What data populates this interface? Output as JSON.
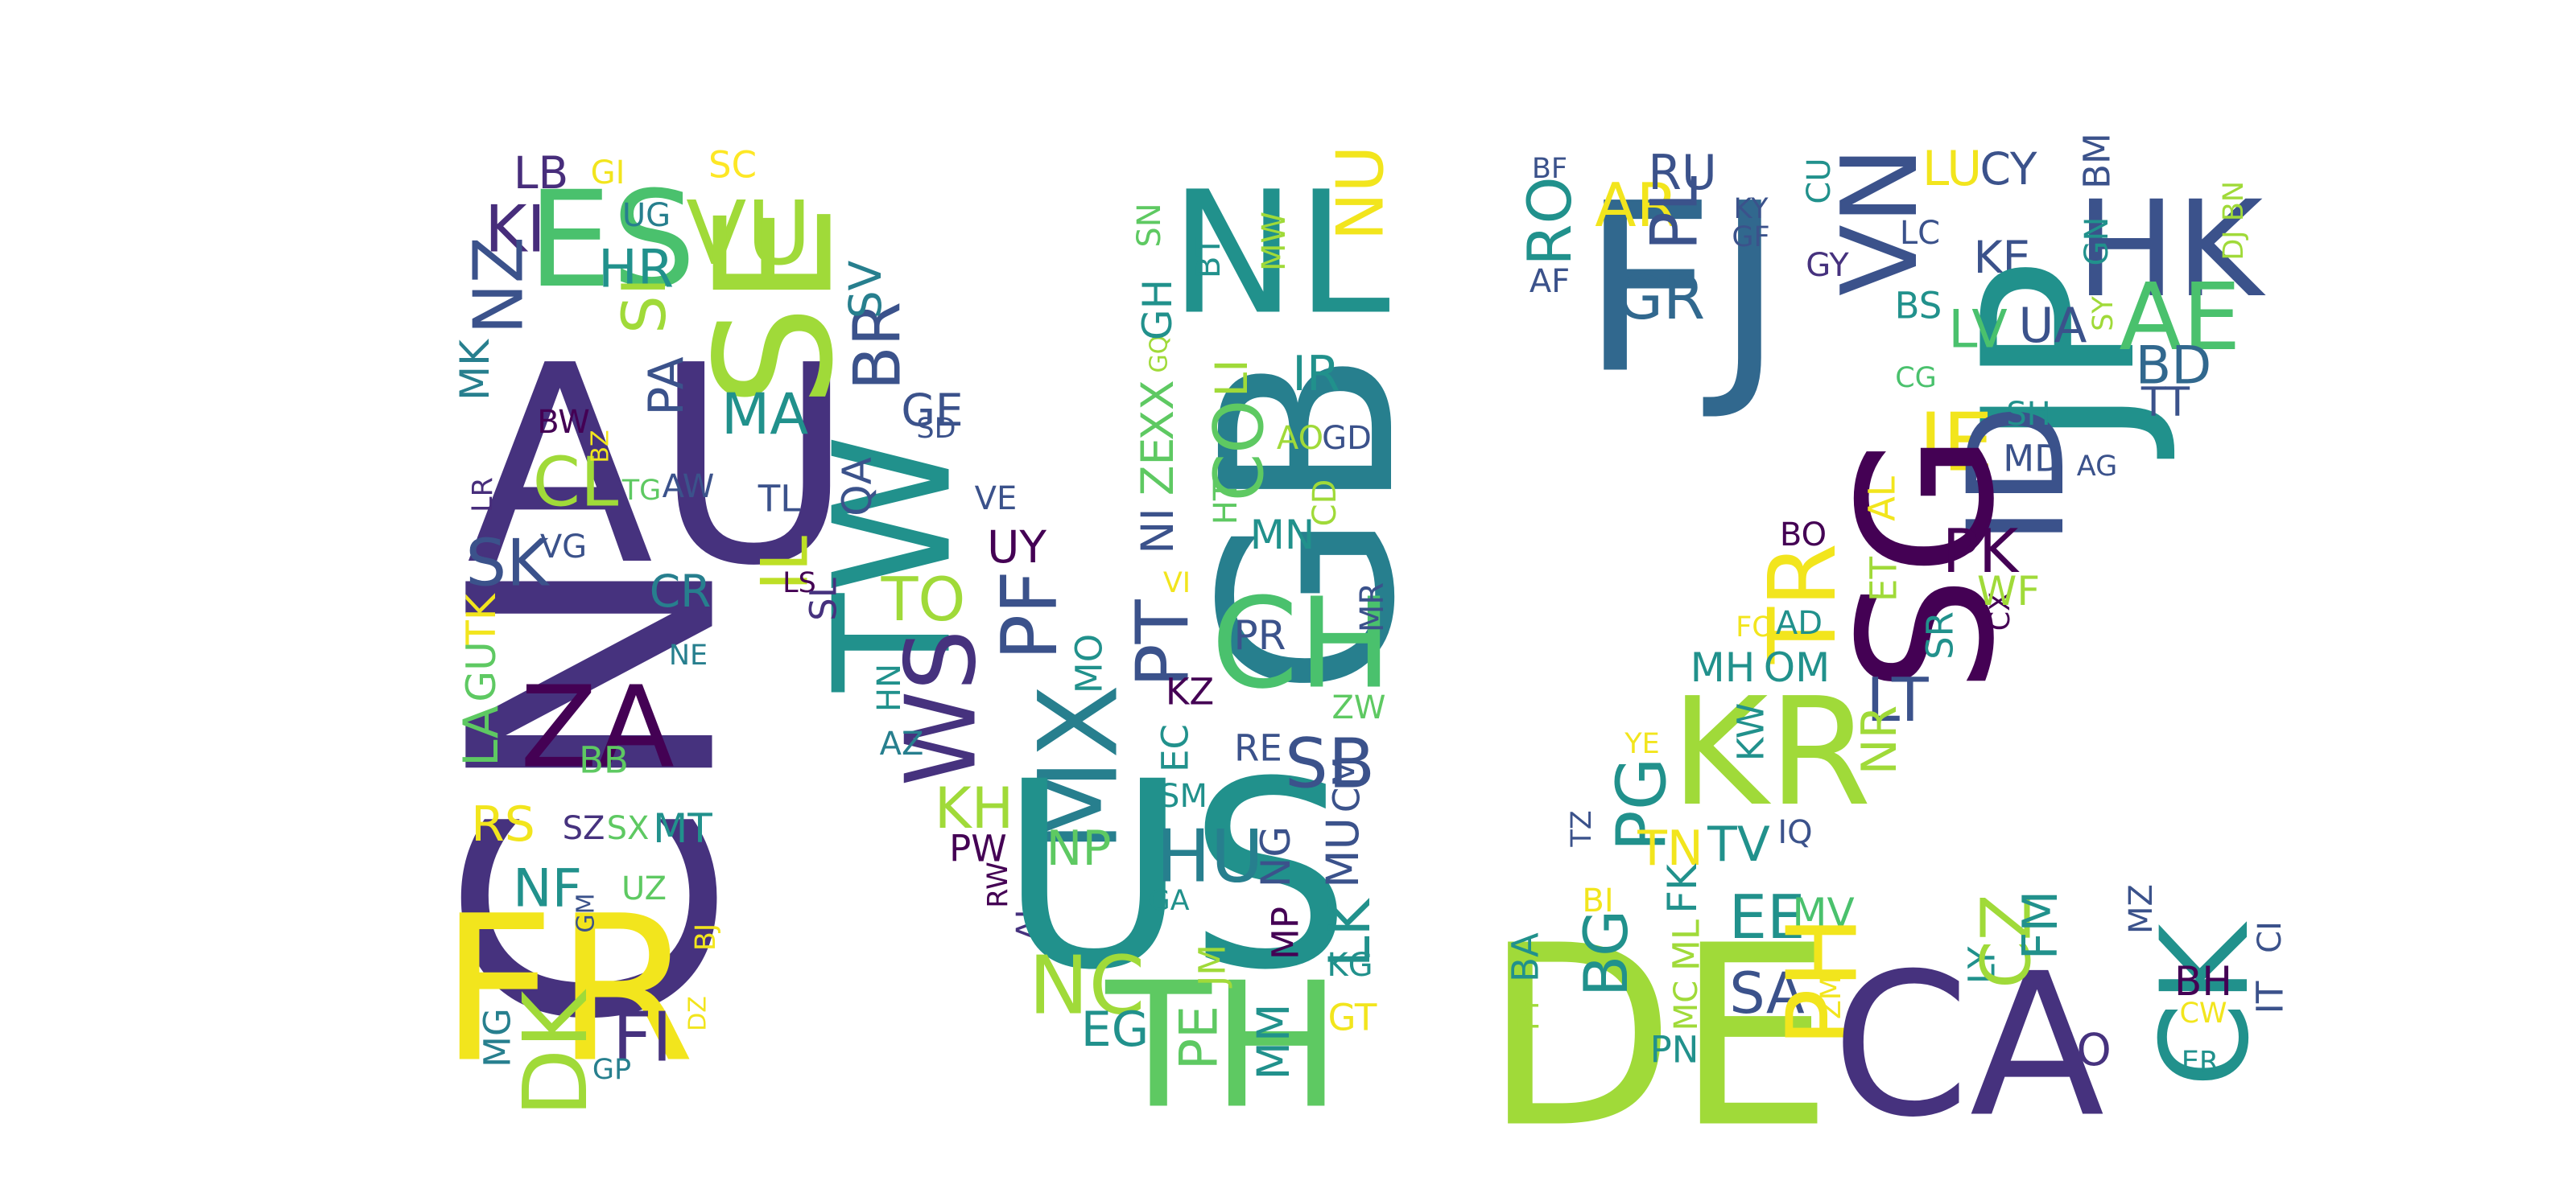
{
  "words": [
    {
      "text": "CN",
      "color": "#46327e"
    },
    {
      "text": "AU",
      "color": "#46327e"
    },
    {
      "text": "FR",
      "color": "#f2e51d"
    },
    {
      "text": "ZA",
      "color": "#440154"
    },
    {
      "text": "ES",
      "color": "#4ac16d"
    },
    {
      "text": "VU",
      "color": "#a0da39"
    },
    {
      "text": "SE",
      "color": "#a0da39"
    },
    {
      "text": "KI",
      "color": "#472d7b"
    },
    {
      "text": "LB",
      "color": "#472d7b"
    },
    {
      "text": "GI",
      "color": "#f2e51d"
    },
    {
      "text": "SC",
      "color": "#fde725"
    },
    {
      "text": "UG",
      "color": "#277f8e"
    },
    {
      "text": "NZ",
      "color": "#3b528b"
    },
    {
      "text": "HR",
      "color": "#21918c"
    },
    {
      "text": "SI",
      "color": "#a0da39"
    },
    {
      "text": "PA",
      "color": "#3b528b"
    },
    {
      "text": "MK",
      "color": "#277f8e"
    },
    {
      "text": "MA",
      "color": "#21918c"
    },
    {
      "text": "BR",
      "color": "#3b528b"
    },
    {
      "text": "SV",
      "color": "#277f8e"
    },
    {
      "text": "GE",
      "color": "#3b528b"
    },
    {
      "text": "SD",
      "color": "#3b528b"
    },
    {
      "text": "BW",
      "color": "#440154"
    },
    {
      "text": "CL",
      "color": "#a0da39"
    },
    {
      "text": "BZ",
      "color": "#f2e51d"
    },
    {
      "text": "TG",
      "color": "#5ec962"
    },
    {
      "text": "AW",
      "color": "#3b528b"
    },
    {
      "text": "LR",
      "color": "#472d7b"
    },
    {
      "text": "SK",
      "color": "#3b528b"
    },
    {
      "text": "VG",
      "color": "#3b528b"
    },
    {
      "text": "TK",
      "color": "#f2e51d"
    },
    {
      "text": "GU",
      "color": "#5ec962"
    },
    {
      "text": "LA",
      "color": "#5ec962"
    },
    {
      "text": "CR",
      "color": "#277f8e"
    },
    {
      "text": "NE",
      "color": "#277f8e"
    },
    {
      "text": "BB",
      "color": "#5ec962"
    },
    {
      "text": "RS",
      "color": "#f2e51d"
    },
    {
      "text": "SZ",
      "color": "#46327e"
    },
    {
      "text": "SX",
      "color": "#5ec962"
    },
    {
      "text": "MT",
      "color": "#21918c"
    },
    {
      "text": "NF",
      "color": "#21918c"
    },
    {
      "text": "UZ",
      "color": "#5ec962"
    },
    {
      "text": "GM",
      "color": "#3b528b"
    },
    {
      "text": "BJ",
      "color": "#f2e51d"
    },
    {
      "text": "DK",
      "color": "#a0da39"
    },
    {
      "text": "MG",
      "color": "#277f8e"
    },
    {
      "text": "FI",
      "color": "#46327e"
    },
    {
      "text": "DZ",
      "color": "#f2e51d"
    },
    {
      "text": "GP",
      "color": "#277f8e"
    },
    {
      "text": "TW",
      "color": "#21918c"
    },
    {
      "text": "TL",
      "color": "#3b528b"
    },
    {
      "text": "QA",
      "color": "#3b528b"
    },
    {
      "text": "IL",
      "color": "#bddf26"
    },
    {
      "text": "LS",
      "color": "#440154"
    },
    {
      "text": "SL",
      "color": "#46327e"
    },
    {
      "text": "TO",
      "color": "#a0da39"
    },
    {
      "text": "WS",
      "color": "#46327e"
    },
    {
      "text": "HN",
      "color": "#21918c"
    },
    {
      "text": "VE",
      "color": "#3b528b"
    },
    {
      "text": "UY",
      "color": "#440154"
    },
    {
      "text": "PF",
      "color": "#3b528b"
    },
    {
      "text": "AZ",
      "color": "#277f8e"
    },
    {
      "text": "KH",
      "color": "#a0da39"
    },
    {
      "text": "PW",
      "color": "#440154"
    },
    {
      "text": "RW",
      "color": "#440154"
    },
    {
      "text": "AI",
      "color": "#46327e"
    },
    {
      "text": "MO",
      "color": "#21918c"
    },
    {
      "text": "MX",
      "color": "#277f8e"
    },
    {
      "text": "NP",
      "color": "#5ec962"
    },
    {
      "text": "US",
      "color": "#21918c"
    },
    {
      "text": "NC",
      "color": "#a0da39"
    },
    {
      "text": "EG",
      "color": "#21918c"
    },
    {
      "text": "TH",
      "color": "#5ec962"
    },
    {
      "text": "SN",
      "color": "#5ec962"
    },
    {
      "text": "XX",
      "color": "#5ec962"
    },
    {
      "text": "GQ",
      "color": "#a0da39"
    },
    {
      "text": "GH",
      "color": "#21918c"
    },
    {
      "text": "ZE",
      "color": "#5ec962"
    },
    {
      "text": "NI",
      "color": "#3b528b"
    },
    {
      "text": "PT",
      "color": "#3b528b"
    },
    {
      "text": "VI",
      "color": "#f2e51d"
    },
    {
      "text": "KZ",
      "color": "#440154"
    },
    {
      "text": "EC",
      "color": "#21918c"
    },
    {
      "text": "SM",
      "color": "#21918c"
    },
    {
      "text": "HU",
      "color": "#277f8e"
    },
    {
      "text": "GA",
      "color": "#21918c"
    },
    {
      "text": "JM",
      "color": "#a0da39"
    },
    {
      "text": "PE",
      "color": "#5ec962"
    },
    {
      "text": "MM",
      "color": "#21918c"
    },
    {
      "text": "NL",
      "color": "#21918c"
    },
    {
      "text": "NU",
      "color": "#f2e51d"
    },
    {
      "text": "MW",
      "color": "#a0da39"
    },
    {
      "text": "BT",
      "color": "#21918c"
    },
    {
      "text": "GB",
      "color": "#277f8e"
    },
    {
      "text": "LI",
      "color": "#a0da39"
    },
    {
      "text": "IR",
      "color": "#21918c"
    },
    {
      "text": "CO",
      "color": "#5ec962"
    },
    {
      "text": "AO",
      "color": "#a0da39"
    },
    {
      "text": "GD",
      "color": "#3b528b"
    },
    {
      "text": "HT",
      "color": "#5ec962"
    },
    {
      "text": "MN",
      "color": "#21918c"
    },
    {
      "text": "CD",
      "color": "#a0da39"
    },
    {
      "text": "CH",
      "color": "#4ac16d"
    },
    {
      "text": "PR",
      "color": "#3b528b"
    },
    {
      "text": "MR",
      "color": "#3b528b"
    },
    {
      "text": "RE",
      "color": "#3b528b"
    },
    {
      "text": "SB",
      "color": "#3b528b"
    },
    {
      "text": "ZW",
      "color": "#5ec962"
    },
    {
      "text": "NG",
      "color": "#3b528b"
    },
    {
      "text": "MU",
      "color": "#3b528b"
    },
    {
      "text": "CM",
      "color": "#3b528b"
    },
    {
      "text": "MP",
      "color": "#440154"
    },
    {
      "text": "LK",
      "color": "#21918c"
    },
    {
      "text": "KG",
      "color": "#21918c"
    },
    {
      "text": "GT",
      "color": "#f2e51d"
    },
    {
      "text": "FJ",
      "color": "#31688e"
    },
    {
      "text": "RO",
      "color": "#21918c"
    },
    {
      "text": "BF",
      "color": "#3b528b"
    },
    {
      "text": "AF",
      "color": "#3b528b"
    },
    {
      "text": "AR",
      "color": "#f2e51d"
    },
    {
      "text": "RU",
      "color": "#3b528b"
    },
    {
      "text": "PL",
      "color": "#3b528b"
    },
    {
      "text": "KY",
      "color": "#3b528b"
    },
    {
      "text": "GF",
      "color": "#3b528b"
    },
    {
      "text": "GR",
      "color": "#31688e"
    },
    {
      "text": "CU",
      "color": "#21918c"
    },
    {
      "text": "GY",
      "color": "#46327e"
    },
    {
      "text": "VN",
      "color": "#3b528b"
    },
    {
      "text": "LU",
      "color": "#f2e51d"
    },
    {
      "text": "CY",
      "color": "#3b528b"
    },
    {
      "text": "LC",
      "color": "#3b528b"
    },
    {
      "text": "BS",
      "color": "#21918c"
    },
    {
      "text": "KE",
      "color": "#3b528b"
    },
    {
      "text": "JP",
      "color": "#21918c"
    },
    {
      "text": "BM",
      "color": "#3b528b"
    },
    {
      "text": "HK",
      "color": "#3b528b"
    },
    {
      "text": "GN",
      "color": "#21918c"
    },
    {
      "text": "DJ",
      "color": "#a0da39"
    },
    {
      "text": "BN",
      "color": "#a0da39"
    },
    {
      "text": "LV",
      "color": "#4ac16d"
    },
    {
      "text": "UA",
      "color": "#3b528b"
    },
    {
      "text": "SY",
      "color": "#a0da39"
    },
    {
      "text": "AE",
      "color": "#4ac16d"
    },
    {
      "text": "BD",
      "color": "#31688e"
    },
    {
      "text": "TT",
      "color": "#3b528b"
    },
    {
      "text": "CG",
      "color": "#4ac16d"
    },
    {
      "text": "IE",
      "color": "#f2e51d"
    },
    {
      "text": "ID",
      "color": "#3b528b"
    },
    {
      "text": "SH",
      "color": "#21918c"
    },
    {
      "text": "MD",
      "color": "#3b528b"
    },
    {
      "text": "AG",
      "color": "#3b528b"
    },
    {
      "text": "SG",
      "color": "#440154"
    },
    {
      "text": "AL",
      "color": "#f2e51d"
    },
    {
      "text": "BO",
      "color": "#440154"
    },
    {
      "text": "PK",
      "color": "#440154"
    },
    {
      "text": "ET",
      "color": "#a0da39"
    },
    {
      "text": "SR",
      "color": "#21918c"
    },
    {
      "text": "CX",
      "color": "#440154"
    },
    {
      "text": "WF",
      "color": "#a0da39"
    },
    {
      "text": "TR",
      "color": "#f2e51d"
    },
    {
      "text": "FO",
      "color": "#f2e51d"
    },
    {
      "text": "AD",
      "color": "#21918c"
    },
    {
      "text": "MH",
      "color": "#21918c"
    },
    {
      "text": "OM",
      "color": "#21918c"
    },
    {
      "text": "LT",
      "color": "#3b528b"
    },
    {
      "text": "KR",
      "color": "#a0da39"
    },
    {
      "text": "KW",
      "color": "#21918c"
    },
    {
      "text": "NR",
      "color": "#a0da39"
    },
    {
      "text": "YE",
      "color": "#f2e51d"
    },
    {
      "text": "PG",
      "color": "#21918c"
    },
    {
      "text": "TZ",
      "color": "#3b528b"
    },
    {
      "text": "TN",
      "color": "#f2e51d"
    },
    {
      "text": "TV",
      "color": "#21918c"
    },
    {
      "text": "IQ",
      "color": "#3b528b"
    },
    {
      "text": "DE",
      "color": "#a0da39"
    },
    {
      "text": "BA",
      "color": "#21918c"
    },
    {
      "text": "BI",
      "color": "#f2e51d"
    },
    {
      "text": "BG",
      "color": "#21918c"
    },
    {
      "text": "PY",
      "color": "#a0da39"
    },
    {
      "text": "FK",
      "color": "#21918c"
    },
    {
      "text": "ML",
      "color": "#a0da39"
    },
    {
      "text": "MC",
      "color": "#a0da39"
    },
    {
      "text": "PN",
      "color": "#21918c"
    },
    {
      "text": "EE",
      "color": "#21918c"
    },
    {
      "text": "MV",
      "color": "#4ac16d"
    },
    {
      "text": "SA",
      "color": "#3b528b"
    },
    {
      "text": "PH",
      "color": "#f2e51d"
    },
    {
      "text": "ZM",
      "color": "#f2e51d"
    },
    {
      "text": "CA",
      "color": "#46327e"
    },
    {
      "text": "LY",
      "color": "#21918c"
    },
    {
      "text": "CZ",
      "color": "#a0da39"
    },
    {
      "text": "FM",
      "color": "#21918c"
    },
    {
      "text": "MZ",
      "color": "#3b528b"
    },
    {
      "text": "CK",
      "color": "#21918c"
    },
    {
      "text": "BH",
      "color": "#440154"
    },
    {
      "text": "CW",
      "color": "#f2e51d"
    },
    {
      "text": "IT",
      "color": "#3b528b"
    },
    {
      "text": "CI",
      "color": "#3b528b"
    },
    {
      "text": "JO",
      "color": "#46327e"
    },
    {
      "text": "ER",
      "color": "#21918c"
    }
  ]
}
